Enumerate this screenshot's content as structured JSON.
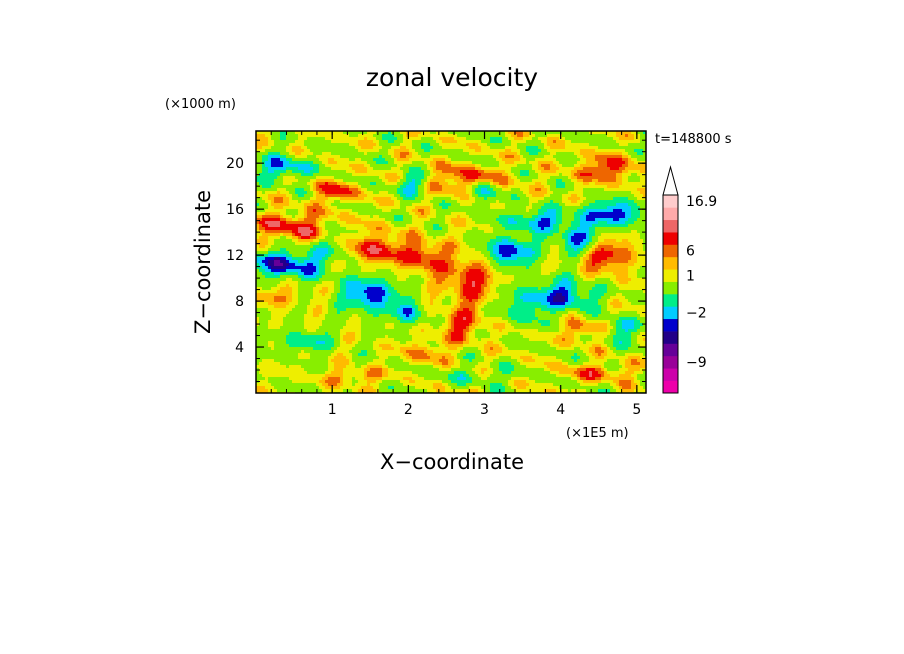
{
  "chart_data": {
    "type": "heatmap",
    "title": "zonal velocity",
    "xlabel": "X−coordinate",
    "ylabel": "Z−coordinate",
    "x_unit": "(×1E5 m)",
    "y_unit": "(×1000 m)",
    "time_label": "t=148800 s",
    "xlim": [
      0,
      5.12
    ],
    "ylim": [
      0,
      22.8
    ],
    "x_ticks": [
      1,
      2,
      3,
      4,
      5
    ],
    "y_ticks": [
      4,
      8,
      12,
      16,
      20
    ],
    "colorbar": {
      "levels": [
        {
          "color": "#ee00aa"
        },
        {
          "color": "#cc00aa"
        },
        {
          "color": "#990099"
        },
        {
          "color": "#660099"
        },
        {
          "color": "#220088"
        },
        {
          "color": "#0000cc"
        },
        {
          "color": "#00ccff"
        },
        {
          "color": "#00ee88"
        },
        {
          "color": "#88ee00"
        },
        {
          "color": "#eeee00"
        },
        {
          "color": "#ffbb00"
        },
        {
          "color": "#ee6600"
        },
        {
          "color": "#ee0000"
        },
        {
          "color": "#ee6666"
        },
        {
          "color": "#ffaaaa"
        },
        {
          "color": "#ffcccc"
        }
      ],
      "tick_labels": [
        {
          "label": "16.9",
          "level": 15
        },
        {
          "label": "6",
          "level": 11
        },
        {
          "label": "1",
          "level": 9
        },
        {
          "label": "−2",
          "level": 6
        },
        {
          "label": "−9",
          "level": 2
        }
      ],
      "extend": "max"
    },
    "field_blobs": [
      {
        "x": 0.35,
        "z": 19.6,
        "v": -3.2,
        "rx": 0.35,
        "rz": 1.0
      },
      {
        "x": 0.45,
        "z": 14.5,
        "v": 3.0,
        "rx": 0.55,
        "rz": 1.3
      },
      {
        "x": 0.4,
        "z": 11.2,
        "v": -4.0,
        "rx": 0.55,
        "rz": 1.3
      },
      {
        "x": 0.3,
        "z": 8.5,
        "v": 1.5,
        "rx": 0.35,
        "rz": 1.0
      },
      {
        "x": 0.65,
        "z": 4.5,
        "v": -2.5,
        "rx": 0.3,
        "rz": 0.9
      },
      {
        "x": 1.05,
        "z": 17.5,
        "v": 2.5,
        "rx": 0.3,
        "rz": 1.0
      },
      {
        "x": 1.1,
        "z": 13.0,
        "v": -1.8,
        "rx": 0.25,
        "rz": 1.2
      },
      {
        "x": 1.55,
        "z": 12.5,
        "v": 3.3,
        "rx": 0.4,
        "rz": 1.5
      },
      {
        "x": 1.5,
        "z": 8.6,
        "v": -4.0,
        "rx": 0.35,
        "rz": 1.6
      },
      {
        "x": 2.0,
        "z": 7.0,
        "v": -3.0,
        "rx": 0.2,
        "rz": 1.0
      },
      {
        "x": 2.2,
        "z": 11.8,
        "v": 3.0,
        "rx": 0.25,
        "rz": 1.4
      },
      {
        "x": 2.05,
        "z": 18.2,
        "v": -2.8,
        "rx": 0.2,
        "rz": 0.9
      },
      {
        "x": 2.8,
        "z": 18.6,
        "v": 2.8,
        "rx": 0.5,
        "rz": 1.2
      },
      {
        "x": 2.8,
        "z": 10.0,
        "v": 3.0,
        "rx": 0.35,
        "rz": 2.4
      },
      {
        "x": 2.7,
        "z": 5.8,
        "v": 2.3,
        "rx": 0.3,
        "rz": 1.5
      },
      {
        "x": 2.2,
        "z": 3.5,
        "v": 1.8,
        "rx": 0.3,
        "rz": 1.0
      },
      {
        "x": 3.3,
        "z": 12.3,
        "v": -4.0,
        "rx": 0.35,
        "rz": 1.3
      },
      {
        "x": 3.0,
        "z": 17.6,
        "v": -3.0,
        "rx": 0.2,
        "rz": 1.1
      },
      {
        "x": 3.7,
        "z": 15.0,
        "v": -3.0,
        "rx": 0.45,
        "rz": 1.0
      },
      {
        "x": 3.5,
        "z": 7.6,
        "v": -2.2,
        "rx": 0.3,
        "rz": 1.5
      },
      {
        "x": 4.05,
        "z": 8.5,
        "v": -3.5,
        "rx": 0.4,
        "rz": 1.4
      },
      {
        "x": 4.25,
        "z": 13.3,
        "v": -3.4,
        "rx": 0.3,
        "rz": 1.3
      },
      {
        "x": 4.7,
        "z": 15.6,
        "v": -4.0,
        "rx": 0.4,
        "rz": 1.1
      },
      {
        "x": 4.6,
        "z": 12.0,
        "v": 3.2,
        "rx": 0.35,
        "rz": 1.6
      },
      {
        "x": 4.6,
        "z": 19.5,
        "v": 3.0,
        "rx": 0.4,
        "rz": 1.1
      },
      {
        "x": 4.8,
        "z": 5.5,
        "v": -2.6,
        "rx": 0.25,
        "rz": 1.0
      },
      {
        "x": 4.3,
        "z": 5.5,
        "v": 2.5,
        "rx": 0.25,
        "rz": 0.9
      },
      {
        "x": 4.5,
        "z": 1.8,
        "v": 2.0,
        "rx": 0.5,
        "rz": 0.8
      },
      {
        "x": 2.9,
        "z": 1.5,
        "v": -1.2,
        "rx": 0.6,
        "rz": 0.7
      },
      {
        "x": 1.3,
        "z": 1.4,
        "v": 1.8,
        "rx": 0.4,
        "rz": 0.7
      }
    ]
  }
}
